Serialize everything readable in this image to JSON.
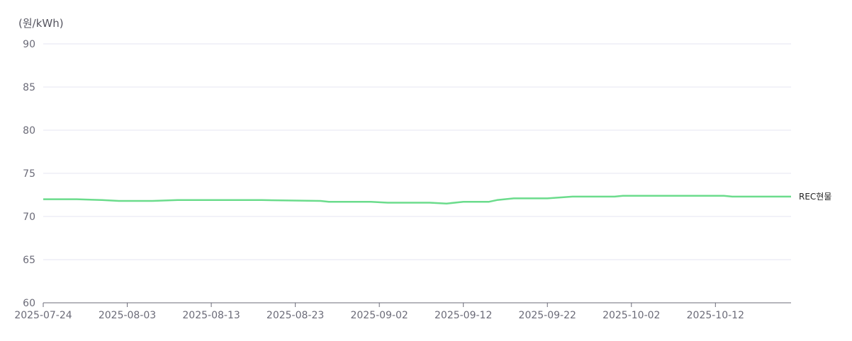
{
  "chart_data": {
    "type": "line",
    "ylabel": "(원/kWh)",
    "ylim": [
      60,
      90
    ],
    "yticks": [
      60,
      65,
      70,
      75,
      80,
      85,
      90
    ],
    "xlim": [
      "2025-07-24",
      "2025-10-21"
    ],
    "xticks": [
      "2025-07-24",
      "2025-08-03",
      "2025-08-13",
      "2025-08-23",
      "2025-09-02",
      "2025-09-12",
      "2025-09-22",
      "2025-10-02",
      "2025-10-12"
    ],
    "grid": true,
    "colors": {
      "line": "#6bdc8c",
      "grid": "#e6e6f0",
      "axis": "#6b6b78"
    },
    "series": [
      {
        "name": "REC현물",
        "points": [
          [
            "2025-07-24",
            72.0
          ],
          [
            "2025-07-28",
            72.0
          ],
          [
            "2025-07-31",
            71.9
          ],
          [
            "2025-08-02",
            71.8
          ],
          [
            "2025-08-06",
            71.8
          ],
          [
            "2025-08-09",
            71.9
          ],
          [
            "2025-08-13",
            71.9
          ],
          [
            "2025-08-19",
            71.9
          ],
          [
            "2025-08-26",
            71.8
          ],
          [
            "2025-08-27",
            71.7
          ],
          [
            "2025-09-01",
            71.7
          ],
          [
            "2025-09-03",
            71.6
          ],
          [
            "2025-09-08",
            71.6
          ],
          [
            "2025-09-10",
            71.5
          ],
          [
            "2025-09-12",
            71.7
          ],
          [
            "2025-09-15",
            71.7
          ],
          [
            "2025-09-16",
            71.9
          ],
          [
            "2025-09-18",
            72.1
          ],
          [
            "2025-09-22",
            72.1
          ],
          [
            "2025-09-25",
            72.3
          ],
          [
            "2025-09-30",
            72.3
          ],
          [
            "2025-10-01",
            72.4
          ],
          [
            "2025-10-13",
            72.4
          ],
          [
            "2025-10-14",
            72.3
          ],
          [
            "2025-10-21",
            72.3
          ]
        ]
      }
    ]
  }
}
